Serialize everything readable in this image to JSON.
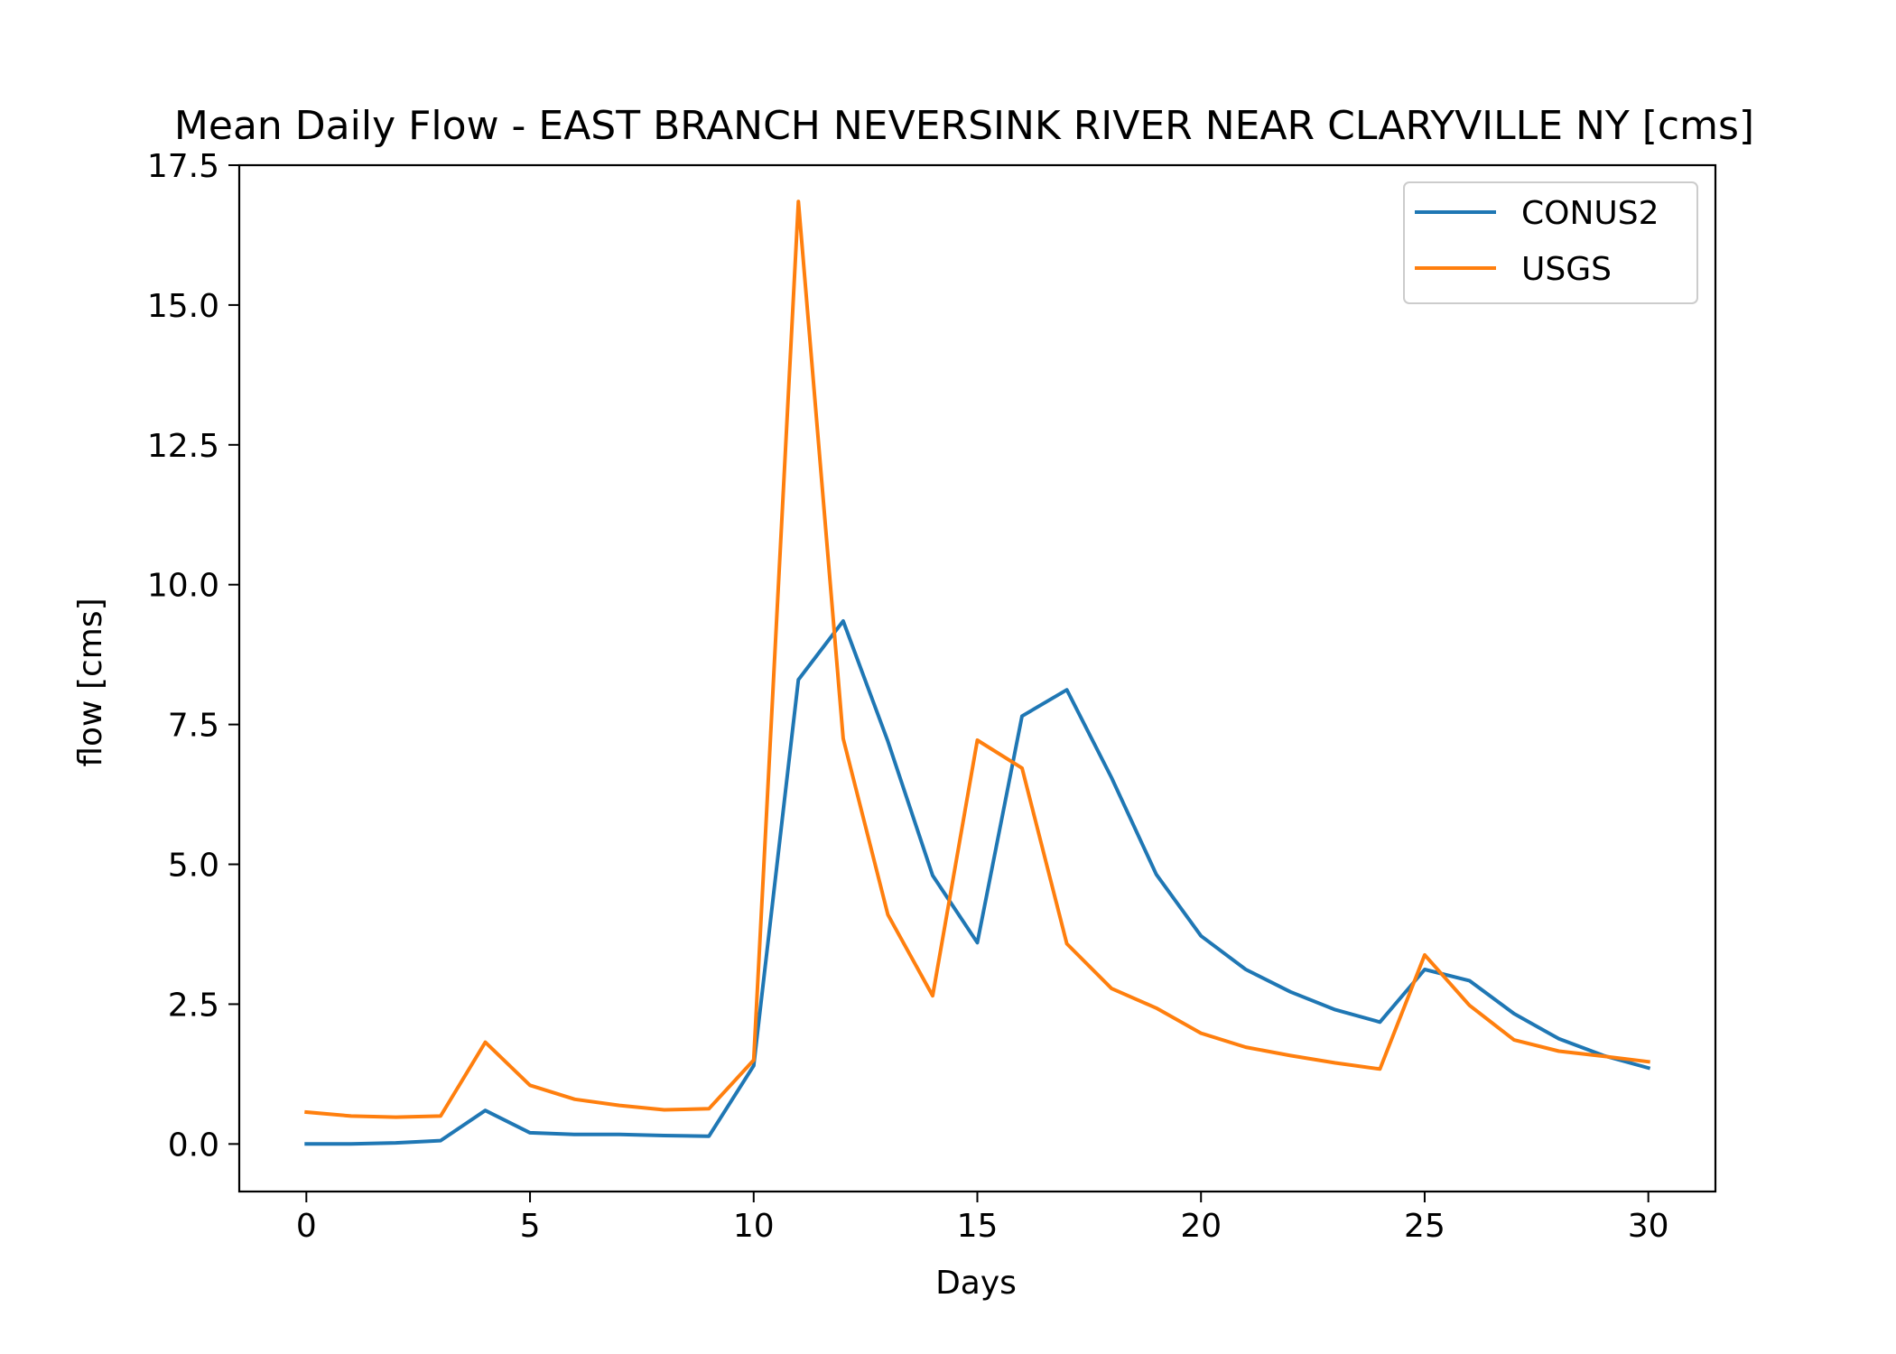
{
  "chart_data": {
    "type": "line",
    "title": "Mean Daily Flow - EAST BRANCH NEVERSINK RIVER NEAR CLARYVILLE NY [cms]",
    "xlabel": "Days",
    "ylabel": "flow [cms]",
    "xlim": [
      -1.5,
      31.5
    ],
    "ylim": [
      -0.85,
      17.5
    ],
    "xticks": [
      0,
      5,
      10,
      15,
      20,
      25,
      30
    ],
    "xtick_labels": [
      "0",
      "5",
      "10",
      "15",
      "20",
      "25",
      "30"
    ],
    "yticks": [
      0,
      2.5,
      5,
      7.5,
      10,
      12.5,
      15,
      17.5
    ],
    "ytick_labels": [
      "0.0",
      "2.5",
      "5.0",
      "7.5",
      "10.0",
      "12.5",
      "15.0",
      "17.5"
    ],
    "grid": false,
    "legend_position": "top-right",
    "x": [
      0,
      1,
      2,
      3,
      4,
      5,
      6,
      7,
      8,
      9,
      10,
      11,
      12,
      13,
      14,
      15,
      16,
      17,
      18,
      19,
      20,
      21,
      22,
      23,
      24,
      25,
      26,
      27,
      28,
      29,
      30
    ],
    "series": [
      {
        "name": "CONUS2",
        "color": "#1f77b4",
        "values": [
          0.0,
          0.0,
          0.02,
          0.06,
          0.6,
          0.2,
          0.17,
          0.17,
          0.15,
          0.14,
          1.4,
          8.3,
          9.35,
          7.2,
          4.8,
          3.6,
          7.65,
          8.12,
          6.55,
          4.82,
          3.72,
          3.12,
          2.72,
          2.4,
          2.18,
          3.12,
          2.92,
          2.33,
          1.88,
          1.58,
          1.36
        ]
      },
      {
        "name": "USGS",
        "color": "#ff7f0e",
        "values": [
          0.57,
          0.5,
          0.48,
          0.5,
          1.82,
          1.05,
          0.8,
          0.69,
          0.61,
          0.63,
          1.5,
          16.85,
          7.25,
          4.1,
          2.65,
          7.22,
          6.72,
          3.58,
          2.78,
          2.43,
          1.98,
          1.73,
          1.58,
          1.45,
          1.34,
          3.38,
          2.48,
          1.86,
          1.66,
          1.57,
          1.47
        ]
      }
    ]
  }
}
